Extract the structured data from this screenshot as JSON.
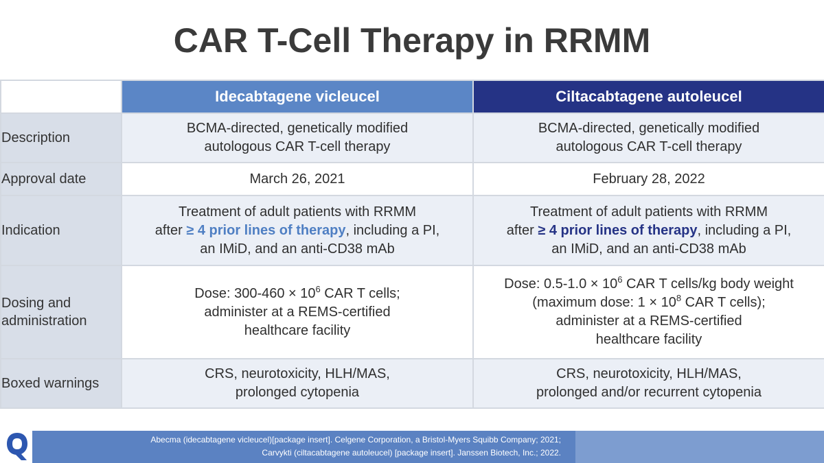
{
  "title": "CAR T-Cell Therapy in RRMM",
  "columns": {
    "a": "Idecabtagene vicleucel",
    "b": "Ciltacabtagene autoleucel"
  },
  "rows": {
    "description": {
      "label": "Description",
      "a": [
        "BCMA-directed, genetically modified",
        "autologous CAR T-cell therapy"
      ],
      "b": [
        "BCMA-directed, genetically modified",
        "autologous CAR T-cell therapy"
      ]
    },
    "approval": {
      "label": "Approval date",
      "a": "March 26, 2021",
      "b": "February 28, 2022"
    },
    "indication": {
      "label": "Indication",
      "a_line1": "Treatment of adult patients with RRMM",
      "a_pre": "after ",
      "a_hl": "≥ 4 prior lines of therapy",
      "a_post": ", including a PI,",
      "a_line3": "an IMiD, and an anti-CD38 mAb",
      "b_line1": "Treatment of adult patients with RRMM",
      "b_pre": "after ",
      "b_hl": "≥ 4 prior lines of therapy",
      "b_post": ", including a PI,",
      "b_line3": "an IMiD, and an anti-CD38 mAb"
    },
    "dosing": {
      "label_line1": "Dosing and",
      "label_line2": "administration",
      "a_dose_pre": "Dose: 300-460 × 10",
      "a_dose_exp": "6",
      "a_dose_post": " CAR T cells;",
      "a_line2": "administer at a REMS-certified",
      "a_line3": "healthcare facility",
      "b_dose_pre": "Dose: 0.5-1.0 × 10",
      "b_dose_exp": "6",
      "b_dose_post": " CAR T cells/kg body weight",
      "b_max_pre": "(maximum dose: 1 × 10",
      "b_max_exp": "8",
      "b_max_post": " CAR T cells);",
      "b_line3": "administer at a REMS-certified",
      "b_line4": "healthcare facility"
    },
    "warnings": {
      "label": "Boxed warnings",
      "a": [
        "CRS, neurotoxicity, HLH/MAS,",
        "prolonged cytopenia"
      ],
      "b": [
        "CRS, neurotoxicity, HLH/MAS,",
        "prolonged and/or recurrent cytopenia"
      ]
    }
  },
  "footer": {
    "ref1": "Abecma (idecabtagene vicleucel)[package insert]. Celgene Corporation, a Bristol-Myers Squibb Company; 2021;",
    "ref2": "Carvykti (ciltacabtagene autoleucel) [package insert]. Janssen Biotech, Inc.; 2022."
  },
  "logo_icon": "q-logo-icon",
  "colors": {
    "col_a_header": "#5b86c6",
    "col_b_header": "#253385",
    "highlight_a": "#4f7fc3",
    "highlight_b": "#253385",
    "label_bg": "#d8dee8",
    "footer": "#5b82c2"
  }
}
